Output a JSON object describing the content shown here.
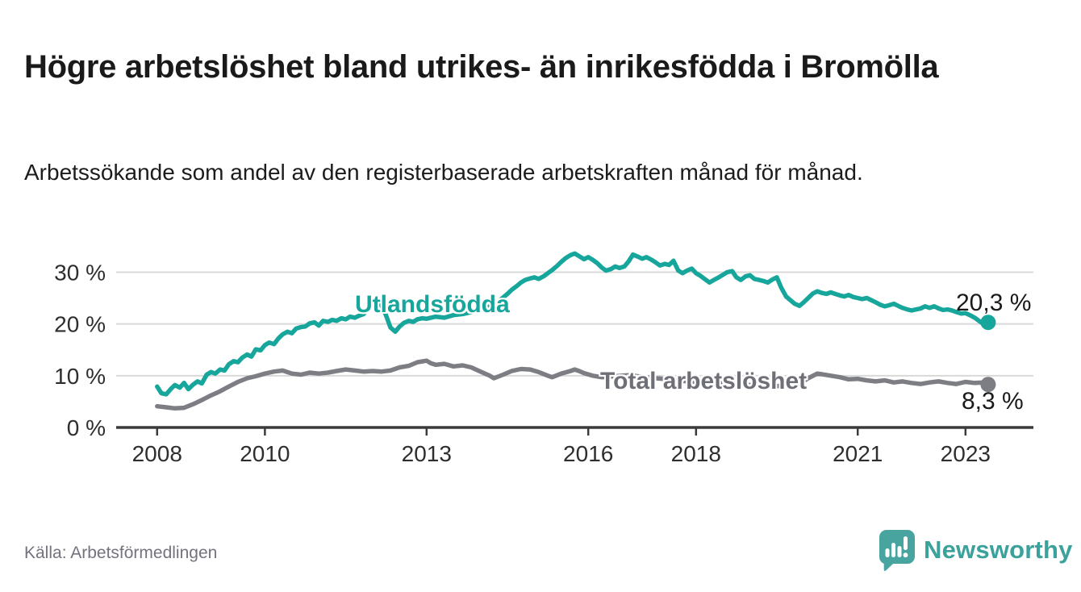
{
  "header": {
    "title": "Högre arbetslöshet bland utrikes- än inrikesfödda i Bromölla",
    "subtitle": "Arbetssökande som andel av den registerbaserade arbetskraften månad för månad."
  },
  "footer": {
    "source": "Källa: Arbetsförmedlingen",
    "brand_name": "Newsworthy",
    "brand_color": "#3aa19b",
    "brand_icon": "speech-bubble-bar-chart-exclamation"
  },
  "chart_data": {
    "type": "line",
    "title": "Högre arbetslöshet bland utrikes- än inrikesfödda i Bromölla",
    "subtitle": "Arbetssökande som andel av den registerbaserade arbetskraften månad för månad.",
    "unit": "%",
    "xlabel": "",
    "ylabel": "",
    "grid": "horizontal",
    "legend": "inline-labels",
    "xlim": [
      2007.24,
      2024.26
    ],
    "ylim": [
      0,
      34.9
    ],
    "x_ticks": [
      {
        "value": 2008,
        "label": "2008"
      },
      {
        "value": 2010,
        "label": "2010"
      },
      {
        "value": 2013,
        "label": "2013"
      },
      {
        "value": 2016,
        "label": "2016"
      },
      {
        "value": 2018,
        "label": "2018"
      },
      {
        "value": 2021,
        "label": "2021"
      },
      {
        "value": 2023,
        "label": "2023"
      }
    ],
    "y_ticks": [
      {
        "value": 0,
        "label": "0 %"
      },
      {
        "value": 10,
        "label": "10 %"
      },
      {
        "value": 20,
        "label": "20 %"
      },
      {
        "value": 30,
        "label": "30 %"
      }
    ],
    "series": [
      {
        "name": "Utlandsfödda",
        "color": "#17a69b",
        "end_label": "20,3 %",
        "end_value": 20.3,
        "points": [
          [
            2008.0,
            7.9
          ],
          [
            2008.08,
            6.6
          ],
          [
            2008.17,
            6.4
          ],
          [
            2008.25,
            7.4
          ],
          [
            2008.33,
            8.2
          ],
          [
            2008.42,
            7.7
          ],
          [
            2008.5,
            8.6
          ],
          [
            2008.58,
            7.4
          ],
          [
            2008.67,
            8.3
          ],
          [
            2008.75,
            8.9
          ],
          [
            2008.83,
            8.5
          ],
          [
            2008.92,
            10.2
          ],
          [
            2009.0,
            10.7
          ],
          [
            2009.08,
            10.4
          ],
          [
            2009.17,
            11.2
          ],
          [
            2009.25,
            11.0
          ],
          [
            2009.33,
            12.2
          ],
          [
            2009.42,
            12.8
          ],
          [
            2009.5,
            12.6
          ],
          [
            2009.58,
            13.5
          ],
          [
            2009.67,
            14.1
          ],
          [
            2009.75,
            13.7
          ],
          [
            2009.83,
            15.1
          ],
          [
            2009.92,
            14.9
          ],
          [
            2010.0,
            15.9
          ],
          [
            2010.08,
            16.4
          ],
          [
            2010.17,
            16.1
          ],
          [
            2010.25,
            17.2
          ],
          [
            2010.33,
            18.0
          ],
          [
            2010.42,
            18.5
          ],
          [
            2010.5,
            18.2
          ],
          [
            2010.58,
            19.1
          ],
          [
            2010.67,
            19.4
          ],
          [
            2010.75,
            19.5
          ],
          [
            2010.83,
            20.1
          ],
          [
            2010.92,
            20.3
          ],
          [
            2011.0,
            19.7
          ],
          [
            2011.08,
            20.6
          ],
          [
            2011.17,
            20.4
          ],
          [
            2011.25,
            20.8
          ],
          [
            2011.33,
            20.6
          ],
          [
            2011.42,
            21.1
          ],
          [
            2011.5,
            20.9
          ],
          [
            2011.58,
            21.4
          ],
          [
            2011.67,
            21.2
          ],
          [
            2011.75,
            21.6
          ],
          [
            2011.83,
            21.9
          ],
          [
            2011.92,
            23.0
          ],
          [
            2012.0,
            24.0
          ],
          [
            2012.08,
            24.7
          ],
          [
            2012.17,
            23.4
          ],
          [
            2012.25,
            21.6
          ],
          [
            2012.33,
            19.3
          ],
          [
            2012.42,
            18.5
          ],
          [
            2012.5,
            19.5
          ],
          [
            2012.58,
            20.2
          ],
          [
            2012.67,
            20.6
          ],
          [
            2012.75,
            20.4
          ],
          [
            2012.83,
            20.9
          ],
          [
            2012.92,
            21.1
          ],
          [
            2013.0,
            21.0
          ],
          [
            2013.17,
            21.4
          ],
          [
            2013.33,
            21.2
          ],
          [
            2013.5,
            21.7
          ],
          [
            2013.67,
            21.9
          ],
          [
            2013.83,
            22.3
          ],
          [
            2014.0,
            22.8
          ],
          [
            2014.17,
            23.4
          ],
          [
            2014.33,
            24.3
          ],
          [
            2014.5,
            25.8
          ],
          [
            2014.58,
            26.6
          ],
          [
            2014.67,
            27.3
          ],
          [
            2014.75,
            28.0
          ],
          [
            2014.83,
            28.5
          ],
          [
            2014.92,
            28.8
          ],
          [
            2015.0,
            29.0
          ],
          [
            2015.08,
            28.7
          ],
          [
            2015.17,
            29.2
          ],
          [
            2015.25,
            29.8
          ],
          [
            2015.33,
            30.4
          ],
          [
            2015.42,
            31.2
          ],
          [
            2015.5,
            32.0
          ],
          [
            2015.58,
            32.7
          ],
          [
            2015.67,
            33.3
          ],
          [
            2015.75,
            33.6
          ],
          [
            2015.83,
            33.1
          ],
          [
            2015.92,
            32.5
          ],
          [
            2016.0,
            32.9
          ],
          [
            2016.08,
            32.4
          ],
          [
            2016.17,
            31.7
          ],
          [
            2016.25,
            30.9
          ],
          [
            2016.33,
            30.3
          ],
          [
            2016.42,
            30.6
          ],
          [
            2016.5,
            31.1
          ],
          [
            2016.58,
            30.8
          ],
          [
            2016.67,
            31.1
          ],
          [
            2016.75,
            32.1
          ],
          [
            2016.83,
            33.4
          ],
          [
            2016.92,
            33.0
          ],
          [
            2017.0,
            32.6
          ],
          [
            2017.08,
            32.9
          ],
          [
            2017.17,
            32.4
          ],
          [
            2017.25,
            31.9
          ],
          [
            2017.33,
            31.3
          ],
          [
            2017.42,
            31.6
          ],
          [
            2017.5,
            31.4
          ],
          [
            2017.58,
            32.2
          ],
          [
            2017.67,
            30.3
          ],
          [
            2017.75,
            29.8
          ],
          [
            2017.83,
            30.3
          ],
          [
            2017.92,
            30.7
          ],
          [
            2018.0,
            29.8
          ],
          [
            2018.08,
            29.3
          ],
          [
            2018.17,
            28.6
          ],
          [
            2018.25,
            28.0
          ],
          [
            2018.33,
            28.5
          ],
          [
            2018.42,
            29.0
          ],
          [
            2018.5,
            29.5
          ],
          [
            2018.58,
            30.0
          ],
          [
            2018.67,
            30.2
          ],
          [
            2018.75,
            29.0
          ],
          [
            2018.83,
            28.5
          ],
          [
            2018.92,
            29.2
          ],
          [
            2019.0,
            29.4
          ],
          [
            2019.08,
            28.7
          ],
          [
            2019.17,
            28.5
          ],
          [
            2019.25,
            28.3
          ],
          [
            2019.33,
            28.0
          ],
          [
            2019.42,
            28.6
          ],
          [
            2019.5,
            29.0
          ],
          [
            2019.58,
            27.0
          ],
          [
            2019.67,
            25.3
          ],
          [
            2019.75,
            24.6
          ],
          [
            2019.83,
            23.9
          ],
          [
            2019.92,
            23.5
          ],
          [
            2020.0,
            24.2
          ],
          [
            2020.08,
            25.0
          ],
          [
            2020.17,
            25.9
          ],
          [
            2020.25,
            26.3
          ],
          [
            2020.33,
            26.0
          ],
          [
            2020.42,
            25.8
          ],
          [
            2020.5,
            26.1
          ],
          [
            2020.58,
            25.8
          ],
          [
            2020.67,
            25.5
          ],
          [
            2020.75,
            25.3
          ],
          [
            2020.83,
            25.6
          ],
          [
            2020.92,
            25.2
          ],
          [
            2021.0,
            25.0
          ],
          [
            2021.08,
            24.8
          ],
          [
            2021.17,
            25.0
          ],
          [
            2021.25,
            24.6
          ],
          [
            2021.33,
            24.2
          ],
          [
            2021.42,
            23.7
          ],
          [
            2021.5,
            23.4
          ],
          [
            2021.58,
            23.6
          ],
          [
            2021.67,
            23.9
          ],
          [
            2021.75,
            23.5
          ],
          [
            2021.83,
            23.1
          ],
          [
            2021.92,
            22.8
          ],
          [
            2022.0,
            22.6
          ],
          [
            2022.08,
            22.8
          ],
          [
            2022.17,
            23.0
          ],
          [
            2022.25,
            23.4
          ],
          [
            2022.33,
            23.1
          ],
          [
            2022.42,
            23.4
          ],
          [
            2022.5,
            23.0
          ],
          [
            2022.58,
            22.7
          ],
          [
            2022.67,
            22.8
          ],
          [
            2022.75,
            22.6
          ],
          [
            2022.83,
            22.3
          ],
          [
            2022.92,
            22.0
          ],
          [
            2023.0,
            22.1
          ],
          [
            2023.08,
            21.7
          ],
          [
            2023.17,
            21.2
          ],
          [
            2023.25,
            20.6
          ],
          [
            2023.33,
            20.0
          ],
          [
            2023.42,
            20.3
          ]
        ]
      },
      {
        "name": "Total arbetslöshet",
        "color": "#7d7d84",
        "label_color": "#6f6f78",
        "end_label": "8,3 %",
        "end_value": 8.3,
        "points": [
          [
            2008.0,
            4.1
          ],
          [
            2008.17,
            3.9
          ],
          [
            2008.33,
            3.7
          ],
          [
            2008.5,
            3.8
          ],
          [
            2008.67,
            4.5
          ],
          [
            2008.83,
            5.3
          ],
          [
            2009.0,
            6.2
          ],
          [
            2009.17,
            7.0
          ],
          [
            2009.33,
            7.9
          ],
          [
            2009.5,
            8.8
          ],
          [
            2009.67,
            9.5
          ],
          [
            2009.83,
            9.9
          ],
          [
            2010.0,
            10.4
          ],
          [
            2010.17,
            10.8
          ],
          [
            2010.33,
            11.0
          ],
          [
            2010.5,
            10.4
          ],
          [
            2010.67,
            10.2
          ],
          [
            2010.83,
            10.6
          ],
          [
            2011.0,
            10.4
          ],
          [
            2011.17,
            10.6
          ],
          [
            2011.33,
            10.9
          ],
          [
            2011.5,
            11.2
          ],
          [
            2011.67,
            11.0
          ],
          [
            2011.83,
            10.8
          ],
          [
            2012.0,
            10.9
          ],
          [
            2012.17,
            10.8
          ],
          [
            2012.33,
            11.0
          ],
          [
            2012.5,
            11.6
          ],
          [
            2012.67,
            11.9
          ],
          [
            2012.83,
            12.6
          ],
          [
            2013.0,
            12.9
          ],
          [
            2013.08,
            12.4
          ],
          [
            2013.17,
            12.1
          ],
          [
            2013.33,
            12.3
          ],
          [
            2013.5,
            11.8
          ],
          [
            2013.67,
            12.0
          ],
          [
            2013.83,
            11.6
          ],
          [
            2014.0,
            10.8
          ],
          [
            2014.17,
            10.0
          ],
          [
            2014.25,
            9.5
          ],
          [
            2014.42,
            10.2
          ],
          [
            2014.58,
            10.9
          ],
          [
            2014.75,
            11.3
          ],
          [
            2014.92,
            11.2
          ],
          [
            2015.08,
            10.7
          ],
          [
            2015.25,
            10.0
          ],
          [
            2015.33,
            9.7
          ],
          [
            2015.5,
            10.4
          ],
          [
            2015.67,
            10.9
          ],
          [
            2015.75,
            11.2
          ],
          [
            2015.83,
            10.9
          ],
          [
            2015.92,
            10.5
          ],
          [
            2016.08,
            10.0
          ],
          [
            2016.25,
            9.7
          ],
          [
            2016.5,
            9.9
          ],
          [
            2016.75,
            10.1
          ],
          [
            2017.0,
            9.8
          ],
          [
            2017.25,
            9.5
          ],
          [
            2017.5,
            9.3
          ],
          [
            2017.75,
            9.0
          ],
          [
            2018.0,
            8.8
          ],
          [
            2018.25,
            8.6
          ],
          [
            2018.5,
            8.5
          ],
          [
            2018.75,
            8.3
          ],
          [
            2019.0,
            8.2
          ],
          [
            2019.25,
            8.1
          ],
          [
            2019.5,
            8.0
          ],
          [
            2019.75,
            8.2
          ],
          [
            2019.92,
            8.5
          ],
          [
            2020.08,
            9.5
          ],
          [
            2020.25,
            10.4
          ],
          [
            2020.33,
            10.3
          ],
          [
            2020.5,
            10.0
          ],
          [
            2020.67,
            9.7
          ],
          [
            2020.83,
            9.3
          ],
          [
            2021.0,
            9.4
          ],
          [
            2021.17,
            9.1
          ],
          [
            2021.33,
            8.9
          ],
          [
            2021.5,
            9.1
          ],
          [
            2021.67,
            8.7
          ],
          [
            2021.83,
            8.9
          ],
          [
            2022.0,
            8.6
          ],
          [
            2022.17,
            8.4
          ],
          [
            2022.33,
            8.7
          ],
          [
            2022.5,
            8.9
          ],
          [
            2022.67,
            8.6
          ],
          [
            2022.83,
            8.4
          ],
          [
            2023.0,
            8.8
          ],
          [
            2023.17,
            8.6
          ],
          [
            2023.33,
            8.7
          ],
          [
            2023.42,
            8.3
          ]
        ]
      }
    ]
  }
}
